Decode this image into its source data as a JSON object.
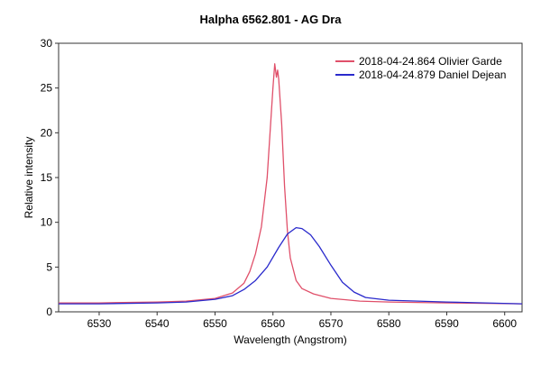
{
  "chart_data": {
    "type": "line",
    "title": "Halpha 6562.801 - AG Dra",
    "xlabel": "Wavelength (Angstrom)",
    "ylabel": "Relative intensity",
    "xlim": [
      6523,
      6603
    ],
    "ylim": [
      0,
      30
    ],
    "x_ticks": [
      6530,
      6540,
      6550,
      6560,
      6570,
      6580,
      6590,
      6600
    ],
    "y_ticks": [
      0,
      5,
      10,
      15,
      20,
      25,
      30
    ],
    "grid": false,
    "legend_position": "top-right",
    "series": [
      {
        "name": "2018-04-24.864  Olivier Garde",
        "color": "#e0506a",
        "points": [
          [
            6523,
            1.0
          ],
          [
            6530,
            1.0
          ],
          [
            6540,
            1.1
          ],
          [
            6545,
            1.2
          ],
          [
            6550,
            1.5
          ],
          [
            6553,
            2.1
          ],
          [
            6555,
            3.2
          ],
          [
            6556,
            4.5
          ],
          [
            6557,
            6.5
          ],
          [
            6558,
            9.5
          ],
          [
            6559,
            15.0
          ],
          [
            6559.5,
            20.0
          ],
          [
            6560,
            25.0
          ],
          [
            6560.3,
            27.7
          ],
          [
            6560.6,
            26.2
          ],
          [
            6560.8,
            27.0
          ],
          [
            6561,
            26.0
          ],
          [
            6561.5,
            21.0
          ],
          [
            6562,
            14.0
          ],
          [
            6562.5,
            9.0
          ],
          [
            6563,
            6.0
          ],
          [
            6564,
            3.5
          ],
          [
            6565,
            2.6
          ],
          [
            6567,
            2.0
          ],
          [
            6570,
            1.5
          ],
          [
            6575,
            1.2
          ],
          [
            6580,
            1.1
          ],
          [
            6590,
            1.0
          ],
          [
            6603,
            0.9
          ]
        ]
      },
      {
        "name": "2018-04-24.879  Daniel Dejean",
        "color": "#2a2acc",
        "points": [
          [
            6523,
            0.9
          ],
          [
            6530,
            0.9
          ],
          [
            6540,
            1.0
          ],
          [
            6545,
            1.1
          ],
          [
            6550,
            1.4
          ],
          [
            6553,
            1.8
          ],
          [
            6555,
            2.5
          ],
          [
            6557,
            3.5
          ],
          [
            6559,
            5.0
          ],
          [
            6561,
            7.2
          ],
          [
            6562.5,
            8.7
          ],
          [
            6564,
            9.4
          ],
          [
            6565,
            9.3
          ],
          [
            6566.5,
            8.6
          ],
          [
            6568,
            7.3
          ],
          [
            6570,
            5.2
          ],
          [
            6572,
            3.3
          ],
          [
            6574,
            2.2
          ],
          [
            6576,
            1.6
          ],
          [
            6580,
            1.3
          ],
          [
            6590,
            1.1
          ],
          [
            6603,
            0.9
          ]
        ]
      }
    ]
  }
}
